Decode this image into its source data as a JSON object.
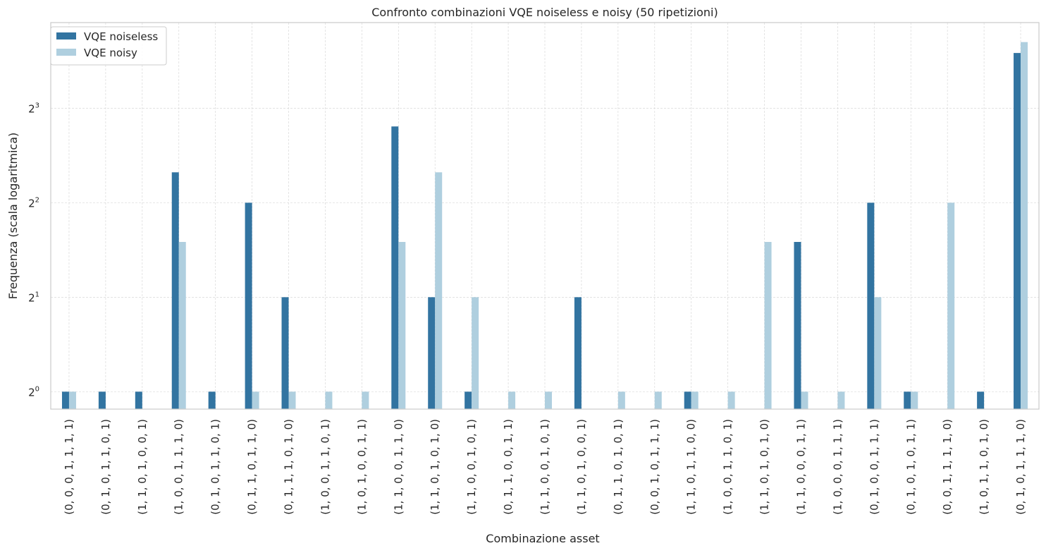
{
  "chart_data": {
    "type": "bar",
    "title": "Confronto combinazioni VQE noiseless e noisy (50 ripetizioni)",
    "xlabel": "Combinazione asset",
    "ylabel": "Frequenza (scala logaritmica)",
    "yscale": "log2",
    "ylim": [
      0.88,
      15.0
    ],
    "yticks": [
      {
        "value": 1,
        "base": "2",
        "exp": "0"
      },
      {
        "value": 2,
        "base": "2",
        "exp": "1"
      },
      {
        "value": 4,
        "base": "2",
        "exp": "2"
      },
      {
        "value": 8,
        "base": "2",
        "exp": "3"
      }
    ],
    "grid": true,
    "legend_position": "top-left",
    "categories": [
      "(0, 0, 0, 1, 1, 1, 1)",
      "(0, 1, 0, 1, 1, 0, 1)",
      "(1, 1, 0, 1, 0, 0, 1)",
      "(1, 0, 0, 1, 1, 1, 0)",
      "(0, 1, 0, 1, 1, 0, 1)",
      "(0, 1, 1, 0, 1, 1, 0)",
      "(0, 1, 1, 1, 0, 1, 0)",
      "(1, 0, 0, 1, 1, 0, 1)",
      "(1, 0, 1, 0, 0, 1, 1)",
      "(1, 1, 0, 0, 1, 1, 0)",
      "(1, 1, 0, 1, 0, 1, 0)",
      "(1, 1, 0, 0, 1, 0, 1)",
      "(0, 1, 1, 0, 0, 1, 1)",
      "(1, 1, 0, 0, 1, 0, 1)",
      "(1, 1, 0, 1, 0, 0, 1)",
      "(0, 1, 1, 0, 1, 0, 1)",
      "(0, 0, 1, 0, 1, 1, 1)",
      "(1, 1, 0, 1, 1, 0, 0)",
      "(1, 0, 0, 1, 1, 0, 1)",
      "(1, 1, 0, 1, 0, 1, 0)",
      "(1, 1, 0, 0, 0, 1, 1)",
      "(1, 0, 0, 0, 1, 1, 1)",
      "(0, 1, 0, 0, 1, 1, 1)",
      "(0, 1, 0, 1, 0, 1, 1)",
      "(0, 0, 1, 1, 1, 1, 0)",
      "(1, 0, 1, 1, 0, 1, 0)",
      "(0, 1, 0, 1, 1, 1, 0)"
    ],
    "series": [
      {
        "name": "VQE noiseless",
        "color": "#3274a1",
        "values": [
          1,
          1,
          1,
          5,
          1,
          4,
          2,
          0,
          0,
          7,
          2,
          1,
          0,
          0,
          2,
          0,
          0,
          1,
          0,
          0,
          3,
          0,
          4,
          1,
          0,
          1,
          12
        ]
      },
      {
        "name": "VQE noisy",
        "color": "#afcfdf",
        "values": [
          1,
          0,
          0,
          3,
          0,
          1,
          1,
          1,
          1,
          3,
          5,
          2,
          1,
          1,
          0,
          1,
          1,
          1,
          1,
          3,
          1,
          1,
          2,
          1,
          4,
          0,
          13
        ]
      }
    ]
  }
}
